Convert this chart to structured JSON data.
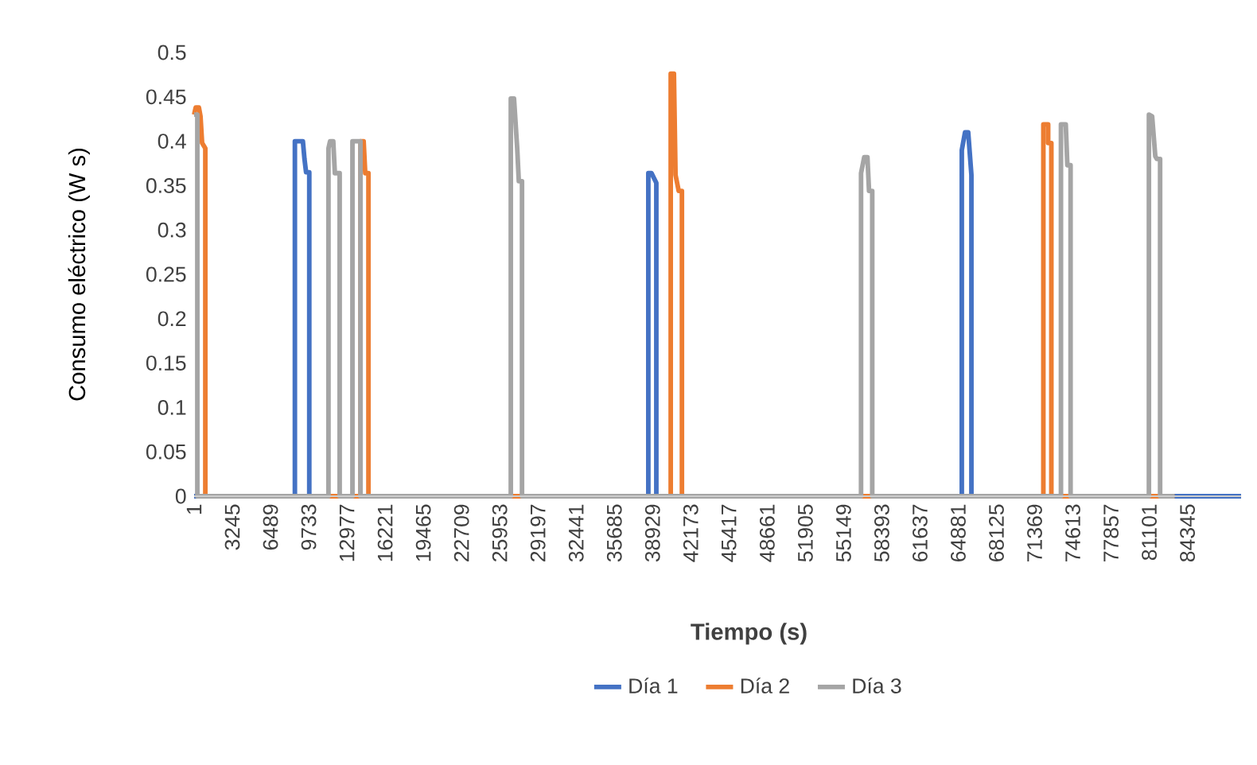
{
  "chart_data": {
    "type": "line",
    "xlabel": "Tiempo (s)",
    "ylabel": "Consumo eléctrico (W s)",
    "xlim": [
      1,
      88900
    ],
    "xticks": [
      1,
      3245,
      6489,
      9733,
      12977,
      16221,
      19465,
      22709,
      25953,
      29197,
      32441,
      35685,
      38929,
      42173,
      45417,
      48661,
      51905,
      55149,
      58393,
      61637,
      64881,
      68125,
      71369,
      74613,
      77857,
      81101,
      84345
    ],
    "ylim": [
      0,
      0.5
    ],
    "yticks": [
      0,
      0.05,
      0.1,
      0.15,
      0.2,
      0.25,
      0.3,
      0.35,
      0.4,
      0.45,
      0.5
    ],
    "legend": "bottom",
    "marker": "none",
    "line_style": "solid",
    "series": [
      {
        "name": "Día 1",
        "color": "#4472c4",
        "x": [
          1,
          8557,
          8557,
          9236,
          9371,
          9507,
          9779,
          9779,
          38568,
          38568,
          38840,
          39247,
          39247,
          65185,
          65185,
          65457,
          65729,
          66001,
          66001,
          88900
        ],
        "values": [
          0,
          0,
          0.4,
          0.4,
          0.38,
          0.365,
          0.365,
          0,
          0,
          0.364,
          0.364,
          0.353,
          0,
          0,
          0.39,
          0.41,
          0.41,
          0.362,
          0,
          0
        ]
      },
      {
        "name": "Día 2",
        "color": "#ed7d31",
        "x": [
          1,
          137,
          408,
          544,
          680,
          952,
          952,
          14124,
          14124,
          14396,
          14532,
          14803,
          14803,
          40469,
          40469,
          40741,
          40877,
          41148,
          41420,
          41420,
          72110,
          72110,
          72518,
          72518,
          72789,
          72789,
          83246
        ],
        "values": [
          0.43,
          0.438,
          0.438,
          0.428,
          0.398,
          0.392,
          0,
          0,
          0.4,
          0.4,
          0.364,
          0.364,
          0,
          0,
          0.476,
          0.476,
          0.362,
          0.344,
          0.344,
          0,
          0,
          0.419,
          0.419,
          0.398,
          0.398,
          0,
          0
        ]
      },
      {
        "name": "Día 3",
        "color": "#a5a5a5",
        "x": [
          1,
          273,
          273,
          11408,
          11408,
          11544,
          11816,
          11951,
          12359,
          12359,
          13445,
          13445,
          14124,
          14124,
          26890,
          26890,
          27162,
          27434,
          27570,
          27842,
          27842,
          56629,
          56629,
          56901,
          57172,
          57308,
          57580,
          57580,
          73604,
          73604,
          74012,
          74148,
          74420,
          74420,
          81072,
          81072,
          81344,
          81615,
          81751,
          82023,
          82023,
          83246
        ],
        "values": [
          0.43,
          0.43,
          0,
          0,
          0.392,
          0.4,
          0.4,
          0.364,
          0.364,
          0,
          0,
          0.4,
          0.4,
          0,
          0,
          0.448,
          0.448,
          0.392,
          0.355,
          0.355,
          0,
          0,
          0.364,
          0.382,
          0.382,
          0.344,
          0.344,
          0,
          0,
          0.419,
          0.419,
          0.373,
          0.373,
          0,
          0,
          0.43,
          0.428,
          0.383,
          0.38,
          0.38,
          0,
          0
        ]
      }
    ]
  }
}
